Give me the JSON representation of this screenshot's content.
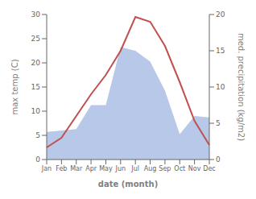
{
  "chart_data": {
    "type": "line",
    "x_label": "date (month)",
    "y_label": "max temp (C)",
    "y2_label": "med. precipitation (kg/m2)",
    "categories": [
      "Jan",
      "Feb",
      "Mar",
      "Apr",
      "May",
      "Jun",
      "Jul",
      "Aug",
      "Sep",
      "Oct",
      "Nov",
      "Dec"
    ],
    "series": [
      {
        "type": "area",
        "axis": "y2",
        "color": "#b8c8e8",
        "values": [
          3.8,
          4.0,
          4.2,
          7.5,
          7.5,
          15.5,
          15.0,
          13.5,
          9.5,
          3.5,
          6.0,
          5.8
        ]
      },
      {
        "type": "line",
        "axis": "y",
        "color": "#c0504d",
        "values": [
          2.5,
          4.5,
          9.0,
          13.5,
          17.5,
          22.5,
          29.5,
          28.5,
          23.5,
          16.0,
          8.0,
          3.0
        ]
      }
    ],
    "ylim": [
      0,
      30
    ],
    "yticks": [
      0,
      5,
      10,
      15,
      20,
      25,
      30
    ],
    "y2lim": [
      0,
      20
    ],
    "y2ticks": [
      0,
      5,
      10,
      15,
      20
    ],
    "grid": false
  }
}
